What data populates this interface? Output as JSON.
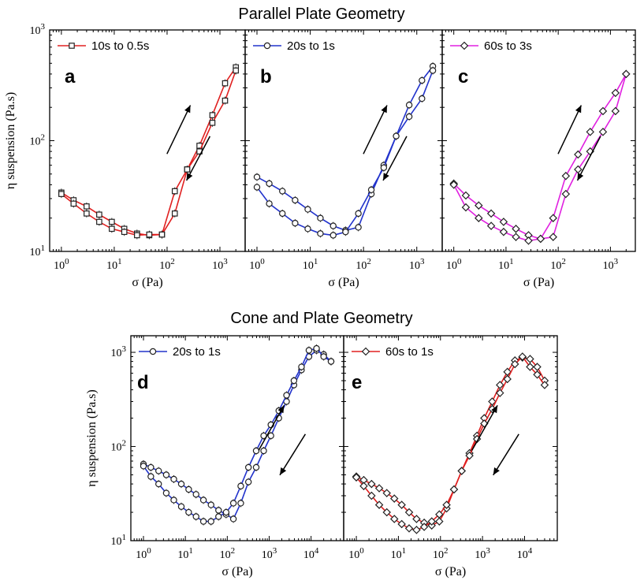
{
  "titles": {
    "top": "Parallel Plate Geometry",
    "bottom": "Cone and Plate Geometry"
  },
  "chart_data": [
    {
      "panel": "a",
      "type": "line",
      "geometry": "Parallel Plate Geometry",
      "legend": "10s to 0.5s",
      "color": "#e02020",
      "marker": "square",
      "xlabel": "σ (Pa)",
      "ylabel": "η suspension (Pa.s)",
      "xscale": "log",
      "yscale": "log",
      "xlim": [
        0.6,
        3000
      ],
      "ylim": [
        10,
        1000
      ],
      "xticks": [
        "10^0",
        "10^1",
        "10^2",
        "10^3"
      ],
      "yticks": [
        "10^1",
        "10^2",
        "10^3"
      ],
      "arrows": [
        "up (increasing stress)",
        "down (decreasing stress)"
      ],
      "series": [
        {
          "name": "up",
          "x": [
            1,
            1.7,
            3,
            5.2,
            9,
            15.5,
            27,
            46,
            80,
            140,
            240,
            410,
            720,
            1250,
            2000
          ],
          "y": [
            34,
            29,
            25.5,
            21.5,
            18.5,
            16,
            14.5,
            14,
            14.2,
            22,
            55,
            90,
            170,
            330,
            460
          ]
        },
        {
          "name": "down",
          "x": [
            2000,
            1250,
            720,
            410,
            240,
            140,
            80,
            46,
            27,
            15.5,
            9,
            5.2,
            3,
            1.7,
            1
          ],
          "y": [
            430,
            230,
            145,
            80,
            55,
            35,
            14.2,
            14.2,
            14,
            15,
            16,
            18.5,
            22,
            27,
            33
          ]
        }
      ]
    },
    {
      "panel": "b",
      "type": "line",
      "geometry": "Parallel Plate Geometry",
      "legend": "20s to 1s",
      "color": "#2233cc",
      "marker": "circle",
      "xlabel": "σ (Pa)",
      "xscale": "log",
      "yscale": "log",
      "xlim": [
        0.6,
        3000
      ],
      "ylim": [
        10,
        1000
      ],
      "xticks": [
        "10^0",
        "10^1",
        "10^2",
        "10^3"
      ],
      "series": [
        {
          "name": "up",
          "x": [
            1,
            1.7,
            3,
            5.2,
            9,
            15.5,
            27,
            46,
            80,
            140,
            240,
            410,
            720,
            1250,
            2000
          ],
          "y": [
            47,
            41,
            35,
            29,
            24,
            20,
            17,
            15.5,
            16.5,
            33,
            60,
            110,
            210,
            350,
            470
          ]
        },
        {
          "name": "down",
          "x": [
            2000,
            1250,
            720,
            410,
            240,
            140,
            80,
            46,
            27,
            15.5,
            9,
            5.2,
            3,
            1.7,
            1
          ],
          "y": [
            430,
            240,
            165,
            110,
            57,
            36,
            22,
            15,
            14,
            14.5,
            16,
            18,
            22,
            27,
            38
          ]
        }
      ]
    },
    {
      "panel": "c",
      "type": "line",
      "geometry": "Parallel Plate Geometry",
      "legend": "60s to 3s",
      "color": "#e020e0",
      "marker": "diamond",
      "xlabel": "σ (Pa)",
      "xscale": "log",
      "yscale": "log",
      "xlim": [
        0.6,
        3000
      ],
      "ylim": [
        10,
        1000
      ],
      "xticks": [
        "10^0",
        "10^1",
        "10^2",
        "10^3"
      ],
      "series": [
        {
          "name": "up",
          "x": [
            1,
            1.7,
            3,
            5.2,
            9,
            15.5,
            27,
            46,
            80,
            140,
            240,
            410,
            720,
            1250,
            2000
          ],
          "y": [
            41,
            32,
            26,
            22,
            18.5,
            16,
            14,
            13,
            13.5,
            33,
            55,
            80,
            120,
            185,
            400
          ]
        },
        {
          "name": "down",
          "x": [
            2000,
            1250,
            720,
            410,
            240,
            140,
            80,
            46,
            27,
            15.5,
            9,
            5.2,
            3,
            1.7,
            1
          ],
          "y": [
            400,
            270,
            185,
            120,
            75,
            48,
            20,
            13,
            12.5,
            13.5,
            15,
            17,
            20,
            25,
            40
          ]
        }
      ]
    },
    {
      "panel": "d",
      "type": "line",
      "geometry": "Cone and Plate Geometry",
      "legend": "20s to 1s",
      "color": "#2233cc",
      "marker": "circle",
      "xlabel": "σ (Pa)",
      "ylabel": "η suspension (Pa.s)",
      "xscale": "log",
      "yscale": "log",
      "xlim": [
        0.5,
        60000
      ],
      "ylim": [
        10,
        1500
      ],
      "xticks": [
        "10^0",
        "10^1",
        "10^2",
        "10^3",
        "10^4"
      ],
      "yticks": [
        "10^1",
        "10^2",
        "10^3"
      ],
      "series": [
        {
          "name": "up",
          "x": [
            1,
            1.5,
            2.3,
            3.5,
            5.3,
            8,
            12,
            18,
            27,
            41,
            62,
            94,
            140,
            210,
            320,
            490,
            740,
            1100,
            1700,
            2600,
            3900,
            5900,
            8900,
            13500,
            20000,
            30000
          ],
          "y": [
            65,
            60,
            55,
            50,
            45,
            40,
            35,
            31,
            27,
            24,
            21,
            19,
            17,
            25,
            42,
            60,
            90,
            130,
            200,
            300,
            450,
            650,
            900,
            1050,
            950,
            800
          ]
        },
        {
          "name": "down",
          "x": [
            30000,
            20000,
            13500,
            8900,
            5900,
            3900,
            2600,
            1700,
            1100,
            740,
            490,
            320,
            210,
            140,
            94,
            62,
            41,
            27,
            18,
            12,
            8,
            5.3,
            3.5,
            2.3,
            1.5,
            1
          ],
          "y": [
            800,
            900,
            1100,
            1050,
            700,
            500,
            350,
            240,
            170,
            130,
            90,
            60,
            38,
            25,
            20,
            18,
            16,
            16,
            18,
            20,
            23,
            27,
            32,
            40,
            48,
            62
          ]
        }
      ]
    },
    {
      "panel": "e",
      "type": "line",
      "geometry": "Cone and Plate Geometry",
      "legend": "60s to 1s",
      "color": "#e02020",
      "marker": "diamond",
      "xlabel": "σ (Pa)",
      "xscale": "log",
      "yscale": "log",
      "xlim": [
        0.5,
        60000
      ],
      "ylim": [
        10,
        1500
      ],
      "xticks": [
        "10^0",
        "10^1",
        "10^2",
        "10^3",
        "10^4"
      ],
      "series": [
        {
          "name": "up",
          "x": [
            1,
            1.5,
            2.3,
            3.5,
            5.3,
            8,
            12,
            18,
            27,
            41,
            62,
            94,
            140,
            210,
            320,
            490,
            740,
            1100,
            1700,
            2600,
            3900,
            5900,
            8900,
            13500,
            20000,
            30000
          ],
          "y": [
            48,
            44,
            40,
            36,
            32,
            28,
            24,
            20,
            17,
            15.5,
            14.5,
            16,
            22,
            35,
            55,
            85,
            130,
            200,
            300,
            450,
            620,
            820,
            880,
            850,
            700,
            500
          ]
        },
        {
          "name": "down",
          "x": [
            30000,
            20000,
            13500,
            8900,
            5900,
            3900,
            2600,
            1700,
            1100,
            740,
            490,
            320,
            210,
            140,
            94,
            62,
            41,
            27,
            18,
            12,
            8,
            5.3,
            3.5,
            2.3,
            1.5,
            1
          ],
          "y": [
            450,
            580,
            700,
            900,
            750,
            520,
            370,
            250,
            175,
            120,
            80,
            55,
            35,
            24,
            19,
            16,
            14,
            13,
            13.5,
            15,
            17,
            20,
            24,
            30,
            38,
            47
          ]
        }
      ]
    }
  ]
}
